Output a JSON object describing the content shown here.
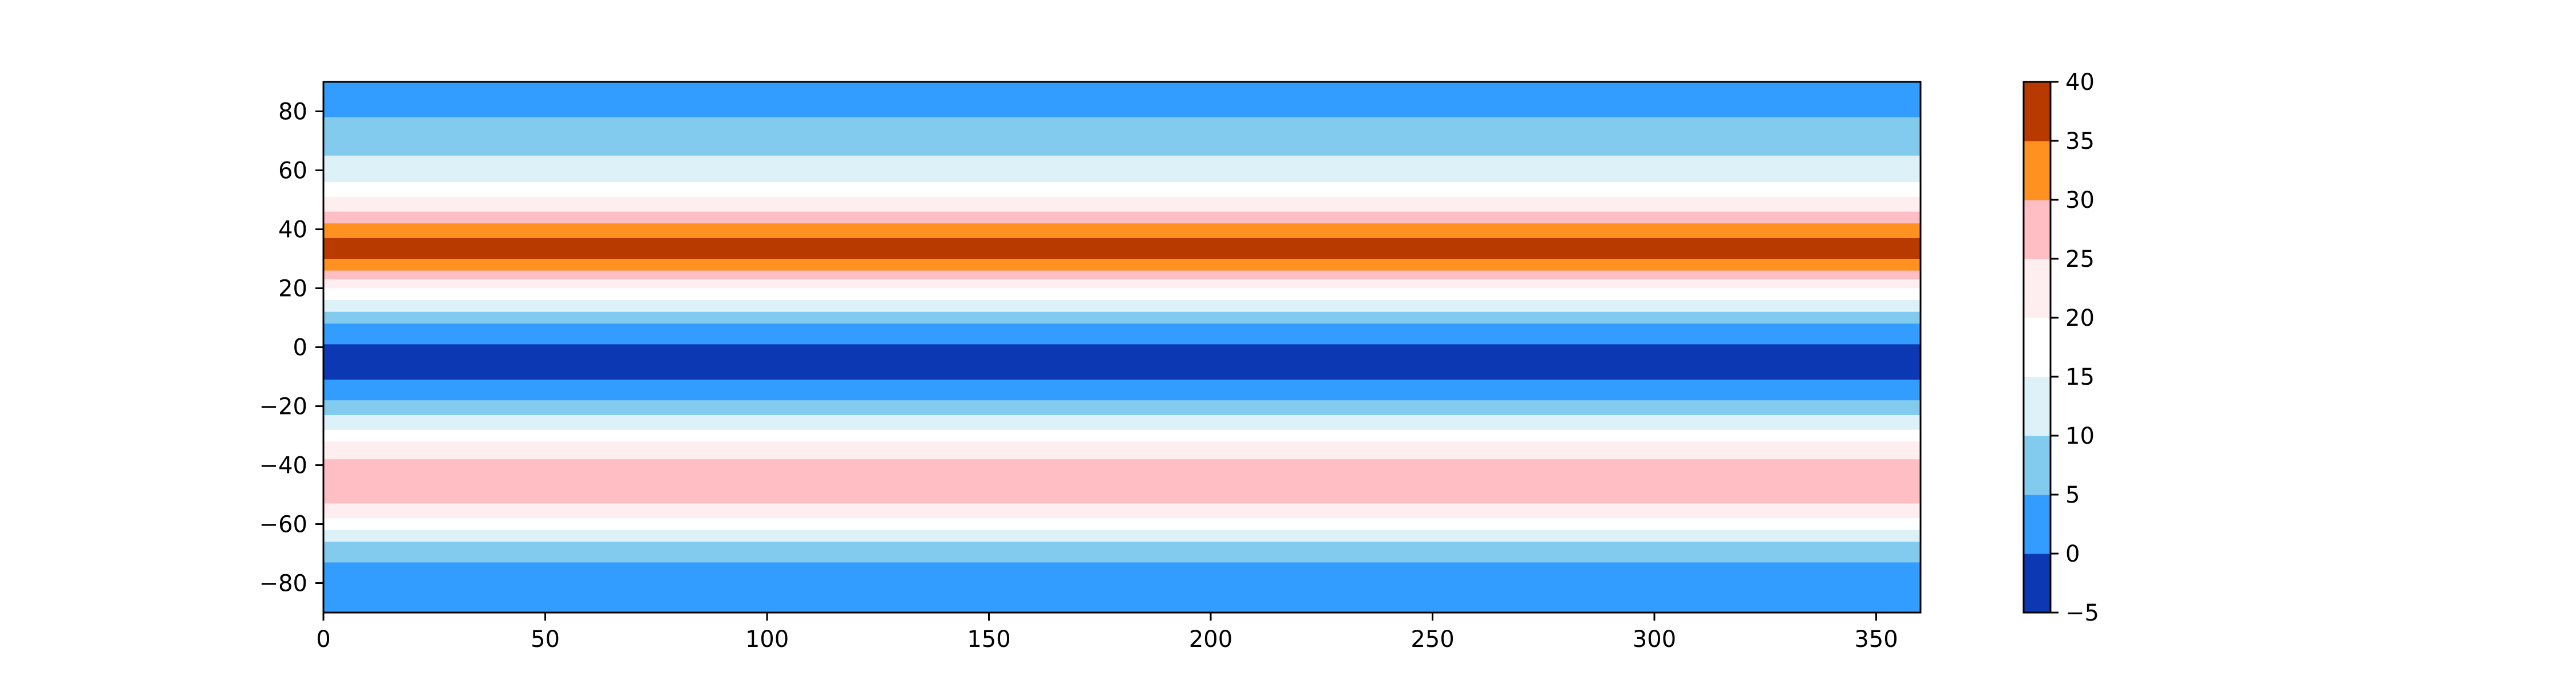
{
  "chart_data": {
    "type": "heatmap",
    "title": "",
    "xlabel": "",
    "ylabel": "",
    "xlim": [
      0,
      360
    ],
    "ylim": [
      -90,
      90
    ],
    "x_ticks": [
      0,
      50,
      100,
      150,
      200,
      250,
      300,
      350
    ],
    "x_tick_labels": [
      "0",
      "50",
      "100",
      "150",
      "200",
      "250",
      "300",
      "350"
    ],
    "y_ticks": [
      80,
      60,
      40,
      20,
      0,
      -20,
      -40,
      -60,
      -80
    ],
    "y_tick_labels": [
      "80",
      "60",
      "40",
      "20",
      "0",
      "−20",
      "−40",
      "−60",
      "−80"
    ],
    "grid": false,
    "colorbar": {
      "levels": [
        -5,
        0,
        5,
        10,
        15,
        20,
        25,
        30,
        35,
        40
      ],
      "tick_labels": [
        "−5",
        "0",
        "5",
        "10",
        "15",
        "20",
        "25",
        "30",
        "35",
        "40"
      ],
      "colors": [
        "#0c38b4",
        "#339cff",
        "#82cbee",
        "#ddf1f9",
        "#ffffff",
        "#ffeef0",
        "#ffbec4",
        "#ff9120",
        "#b93a00"
      ]
    },
    "latitude_bands": [
      {
        "lat_min": 78,
        "lat_max": 90,
        "bin": 1
      },
      {
        "lat_min": 65,
        "lat_max": 78,
        "bin": 2
      },
      {
        "lat_min": 56,
        "lat_max": 65,
        "bin": 3
      },
      {
        "lat_min": 51,
        "lat_max": 56,
        "bin": 4
      },
      {
        "lat_min": 46,
        "lat_max": 51,
        "bin": 5
      },
      {
        "lat_min": 42,
        "lat_max": 46,
        "bin": 6
      },
      {
        "lat_min": 37,
        "lat_max": 42,
        "bin": 7
      },
      {
        "lat_min": 30,
        "lat_max": 37,
        "bin": 8
      },
      {
        "lat_min": 26,
        "lat_max": 30,
        "bin": 7
      },
      {
        "lat_min": 23,
        "lat_max": 26,
        "bin": 6
      },
      {
        "lat_min": 20,
        "lat_max": 23,
        "bin": 5
      },
      {
        "lat_min": 16,
        "lat_max": 20,
        "bin": 4
      },
      {
        "lat_min": 12,
        "lat_max": 16,
        "bin": 3
      },
      {
        "lat_min": 8,
        "lat_max": 12,
        "bin": 2
      },
      {
        "lat_min": 1,
        "lat_max": 8,
        "bin": 1
      },
      {
        "lat_min": -11,
        "lat_max": 1,
        "bin": 0
      },
      {
        "lat_min": -18,
        "lat_max": -11,
        "bin": 1
      },
      {
        "lat_min": -23,
        "lat_max": -18,
        "bin": 2
      },
      {
        "lat_min": -28,
        "lat_max": -23,
        "bin": 3
      },
      {
        "lat_min": -32,
        "lat_max": -28,
        "bin": 4
      },
      {
        "lat_min": -38,
        "lat_max": -32,
        "bin": 5
      },
      {
        "lat_min": -53,
        "lat_max": -38,
        "bin": 6
      },
      {
        "lat_min": -58,
        "lat_max": -53,
        "bin": 5
      },
      {
        "lat_min": -62,
        "lat_max": -58,
        "bin": 4
      },
      {
        "lat_min": -66,
        "lat_max": -62,
        "bin": 3
      },
      {
        "lat_min": -73,
        "lat_max": -66,
        "bin": 2
      },
      {
        "lat_min": -90,
        "lat_max": -73,
        "bin": 1
      }
    ]
  }
}
